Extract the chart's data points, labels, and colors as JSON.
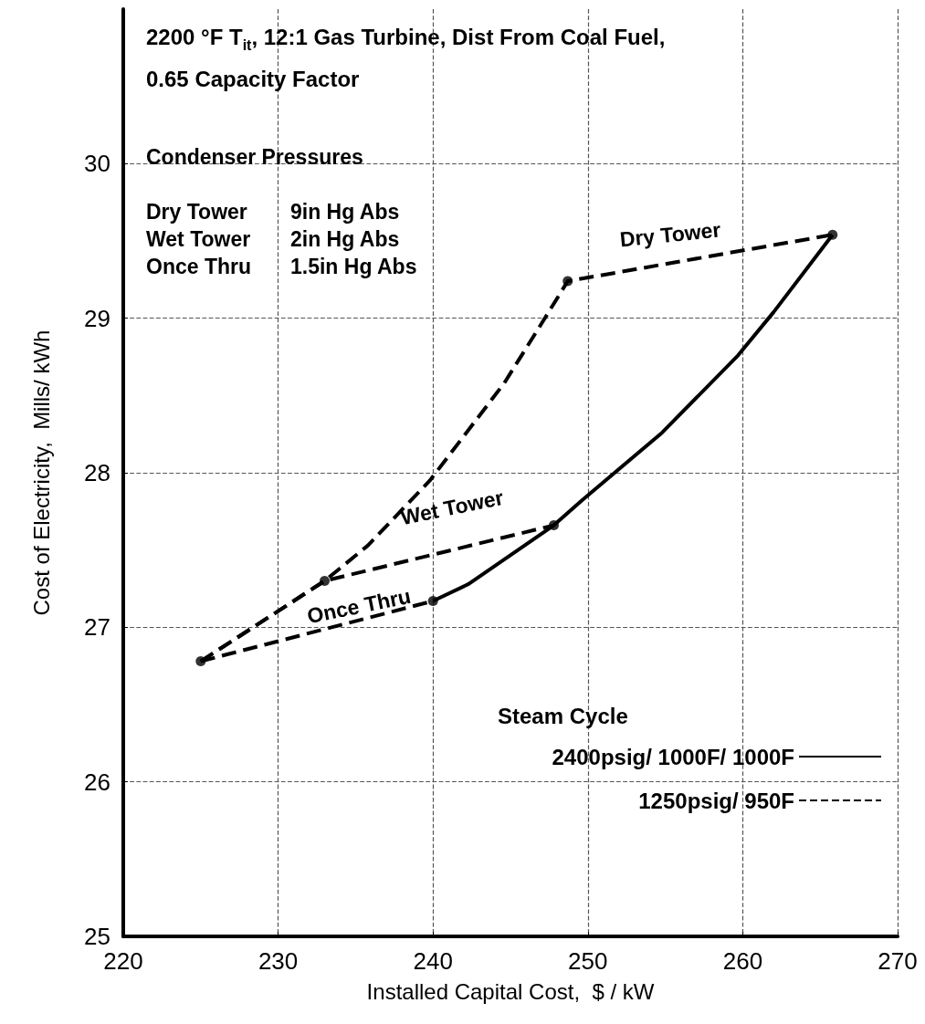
{
  "chart_data": {
    "type": "line",
    "title": "2200 °F T$_{it}$, 12:1 Gas Turbine, Dist From Coal Fuel,",
    "subtitle": "0.65 Capacity Factor",
    "xlabel": "Installed Capital Cost,  $ / kW",
    "ylabel": "Cost of Electricity,  Mills/ kWh",
    "legend_title": "Steam Cycle",
    "xlim": [
      220,
      270
    ],
    "xticks": [
      220,
      230,
      240,
      250,
      260,
      270
    ],
    "ylim": [
      25,
      31
    ],
    "yticks": [
      25,
      26,
      27,
      28,
      29,
      30
    ],
    "grid": true,
    "legend": "bottom right",
    "series": [
      {
        "name": "2400psig/ 1000F/ 1000F",
        "line_style": "solid",
        "marker": "none",
        "color": "#000000",
        "x": [
          240,
          242.3,
          247.8,
          249.6,
          254.8,
          259.7,
          262,
          265.8
        ],
        "values": [
          27.17,
          27.28,
          27.66,
          27.82,
          28.26,
          28.76,
          29.04,
          29.54
        ]
      },
      {
        "name": "1250psig/ 950F",
        "line_style": "dashed",
        "marker": "none",
        "color": "#000000",
        "x": [
          225,
          233,
          235.8,
          239.8,
          244.6,
          247.1,
          248.7,
          265.8
        ],
        "values": [
          26.78,
          27.3,
          27.53,
          27.95,
          28.58,
          28.98,
          29.24,
          29.54
        ]
      },
      {
        "line_style": "dashed",
        "marker": "none",
        "color": "#000000",
        "x": [
          225,
          233,
          247.8
        ],
        "values": [
          26.78,
          27.3,
          27.66
        ]
      },
      {
        "line_style": "dashed",
        "marker": "none",
        "color": "#000000",
        "x": [
          225,
          240
        ],
        "values": [
          26.78,
          27.17
        ]
      },
      {
        "type": "scatter",
        "marker": "circle",
        "color": "#000000",
        "x": [
          225,
          233,
          240,
          247.8,
          248.7,
          265.8
        ],
        "values": [
          26.78,
          27.3,
          27.17,
          27.66,
          29.24,
          29.54
        ]
      }
    ],
    "annotations": [
      "Condenser Pressures",
      "Dry Tower    9in Hg Abs",
      "Wet Tower    2in Hg Abs",
      "Once Thru    1.5in Hg Abs",
      "Dry Tower",
      "Wet Tower",
      "Once Thru"
    ]
  }
}
